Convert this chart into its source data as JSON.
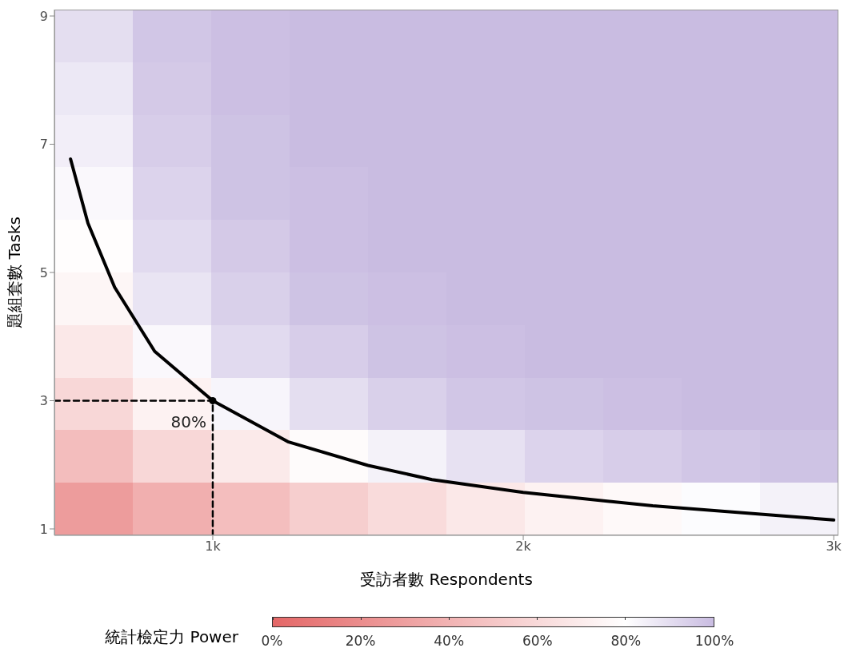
{
  "chart_data": {
    "type": "heatmap",
    "xlabel": "受訪者數 Respondents",
    "ylabel": "題組套數 Tasks",
    "clabel": "統計檢定力 Power",
    "xlim": [
      490,
      3015
    ],
    "ylim": [
      0.9,
      9.1
    ],
    "xticks": [
      {
        "value": 1000,
        "label": "1k"
      },
      {
        "value": 2000,
        "label": "2k"
      },
      {
        "value": 3000,
        "label": "3k"
      }
    ],
    "yticks": [
      1,
      3,
      5,
      7,
      9
    ],
    "clim": [
      0,
      100
    ],
    "cticks": [
      {
        "value": 0,
        "label": "0%"
      },
      {
        "value": 20,
        "label": "20%"
      },
      {
        "value": 40,
        "label": "40%"
      },
      {
        "value": 60,
        "label": "60%"
      },
      {
        "value": 80,
        "label": "80%"
      },
      {
        "value": 100,
        "label": "100%"
      }
    ],
    "x": [
      616.25,
      868.75,
      1121.25,
      1373.75,
      1626.25,
      1878.75,
      2131.25,
      2383.75,
      2636.25,
      2888.75
    ],
    "y": [
      8.69,
      7.87,
      7.05,
      6.23,
      5.41,
      4.59,
      3.77,
      2.95,
      2.13,
      1.31
    ],
    "cells": [
      [
        90,
        97,
        99,
        100,
        100,
        100,
        100,
        100,
        100,
        100
      ],
      [
        87,
        96,
        99,
        100,
        100,
        100,
        100,
        100,
        100,
        100
      ],
      [
        85,
        95,
        98,
        100,
        100,
        100,
        100,
        100,
        100,
        100
      ],
      [
        82,
        93,
        98,
        99,
        100,
        100,
        100,
        100,
        100,
        100
      ],
      [
        79,
        91,
        96,
        99,
        100,
        100,
        100,
        100,
        100,
        100
      ],
      [
        75,
        88,
        94,
        98,
        99,
        100,
        100,
        100,
        100,
        100
      ],
      [
        68,
        82,
        91,
        95,
        98,
        99,
        100,
        100,
        100,
        100
      ],
      [
        59,
        73,
        83,
        90,
        94,
        97,
        98,
        99,
        100,
        100
      ],
      [
        45,
        59,
        69,
        78,
        84,
        89,
        93,
        95,
        97,
        98
      ],
      [
        28,
        38,
        46,
        54,
        61,
        68,
        73,
        77,
        81,
        84
      ]
    ],
    "series": [
      {
        "type": "line",
        "color": "#000000",
        "marker": "none",
        "line_style": "solid",
        "x": [
          542,
          598,
          684,
          813,
          1000,
          1242,
          1500,
          1706,
          2000,
          2417,
          3000
        ],
        "values": [
          6.77,
          5.77,
          4.77,
          3.77,
          3,
          2.36,
          1.99,
          1.77,
          1.57,
          1.36,
          1.14
        ]
      },
      {
        "type": "line",
        "color": "#000000",
        "marker": "none",
        "line_style": "dashed",
        "x": [
          490,
          1000,
          1000
        ],
        "values": [
          3,
          3,
          0.9
        ]
      },
      {
        "type": "scatter",
        "color": "#000000",
        "marker": "circle",
        "x": [
          1000
        ],
        "values": [
          3
        ]
      }
    ],
    "annotations": [
      {
        "text": "80%",
        "x": 1000,
        "y": 3
      }
    ]
  }
}
